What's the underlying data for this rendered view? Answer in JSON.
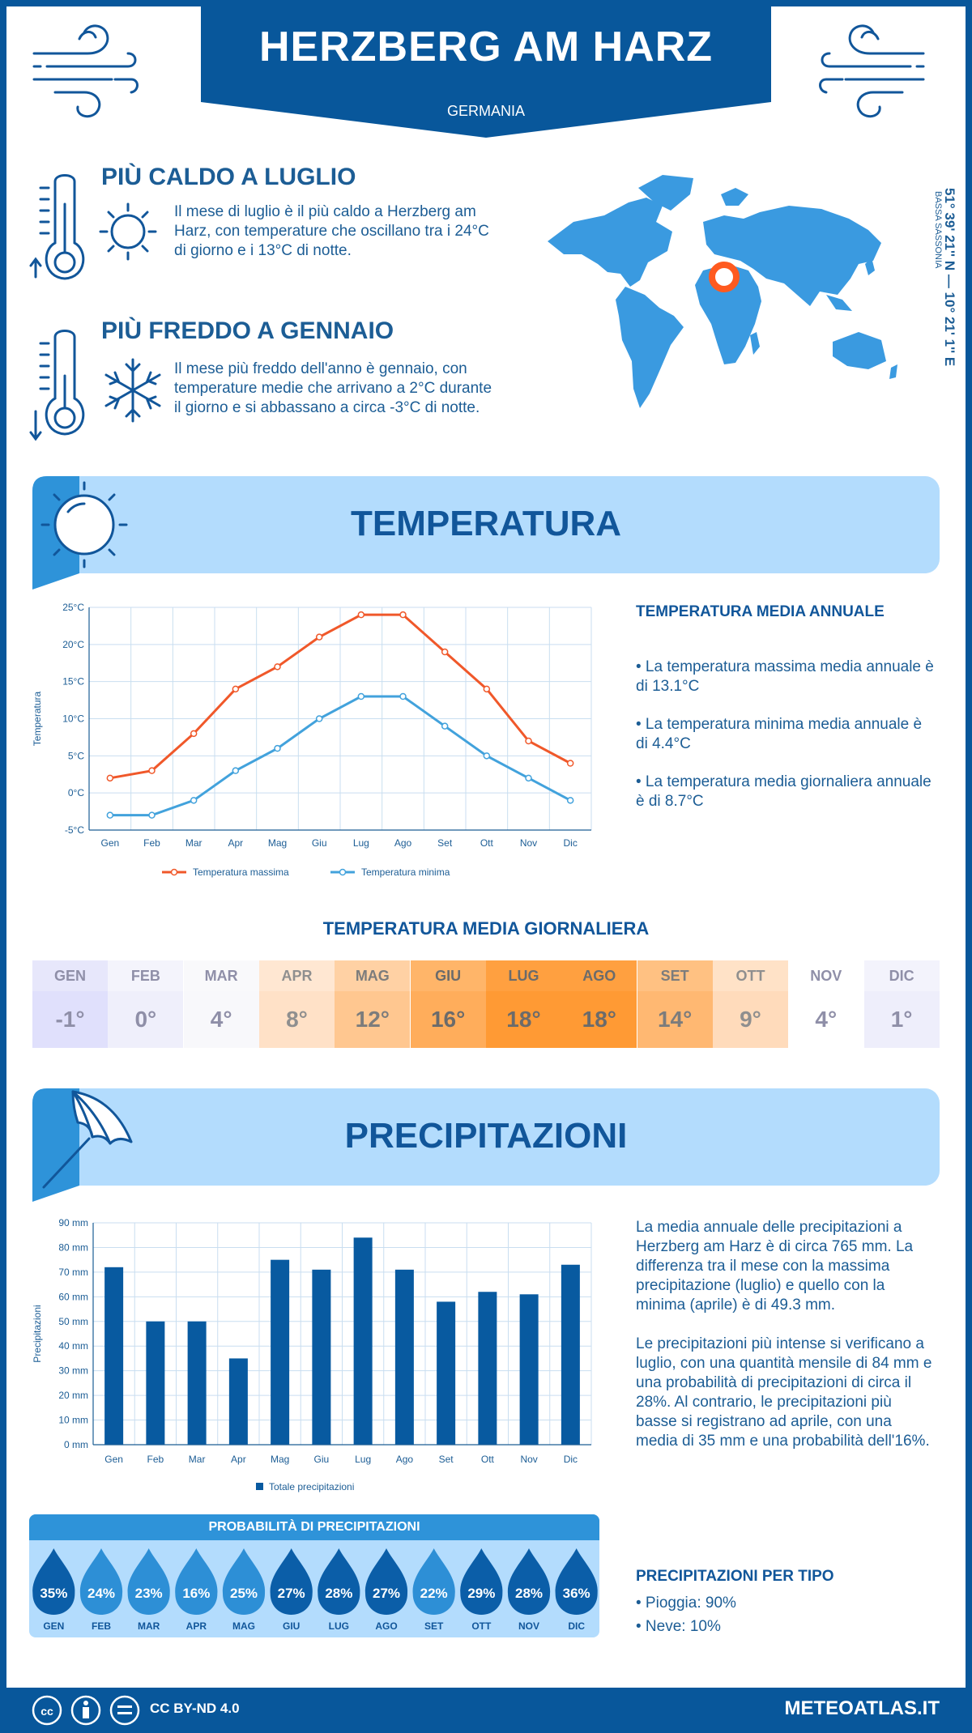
{
  "header": {
    "title": "HERZBERG AM HARZ",
    "country": "GERMANIA"
  },
  "coords": {
    "text": "51° 39' 21'' N — 10° 21' 1'' E",
    "region": "BASSA SASSONIA"
  },
  "hottest": {
    "title": "PIÙ CALDO A LUGLIO",
    "text": "Il mese di luglio è il più caldo a Herzberg am Harz, con temperature che oscillano tra i 24°C di giorno e i 13°C di notte."
  },
  "coldest": {
    "title": "PIÙ FREDDO A GENNAIO",
    "text": "Il mese più freddo dell'anno è gennaio, con temperature medie che arrivano a 2°C durante il giorno e si abbassano a circa -3°C di notte."
  },
  "temperature": {
    "section_title": "TEMPERATURA",
    "side_title": "TEMPERATURA MEDIA ANNUALE",
    "bullets": [
      "• La temperatura massima media annuale è di 13.1°C",
      "• La temperatura minima media annuale è di 4.4°C",
      "• La temperatura media giornaliera annuale è di 8.7°C"
    ],
    "daily_title": "TEMPERATURA MEDIA GIORNALIERA"
  },
  "daily": [
    {
      "month": "GEN",
      "value": "-1°",
      "bg": "#e0e0fc",
      "bg2": "#e7e7fb",
      "color": "#8f8fa8"
    },
    {
      "month": "FEB",
      "value": "0°",
      "bg": "#efeffb",
      "bg2": "#f4f4fc",
      "color": "#8f8fa8"
    },
    {
      "month": "MAR",
      "value": "4°",
      "bg": "#f8f8fb",
      "bg2": "#f9f9fb",
      "color": "#8f8fa8"
    },
    {
      "month": "APR",
      "value": "8°",
      "bg": "#ffe1c7",
      "bg2": "#ffe7d2",
      "color": "#8f8f8f"
    },
    {
      "month": "MAG",
      "value": "12°",
      "bg": "#ffc790",
      "bg2": "#ffd1a4",
      "color": "#7c7c7c"
    },
    {
      "month": "GIU",
      "value": "16°",
      "bg": "#ffad5b",
      "bg2": "#ffb569",
      "color": "#6b6b6b"
    },
    {
      "month": "LUG",
      "value": "18°",
      "bg": "#ff9a34",
      "bg2": "#ffa040",
      "color": "#6b6b6b"
    },
    {
      "month": "AGO",
      "value": "18°",
      "bg": "#ff9a34",
      "bg2": "#ffa040",
      "color": "#6b6b6b"
    },
    {
      "month": "SET",
      "value": "14°",
      "bg": "#ffb872",
      "bg2": "#ffc182",
      "color": "#7c7c7c"
    },
    {
      "month": "OTT",
      "value": "9°",
      "bg": "#ffdbbb",
      "bg2": "#ffe2c7",
      "color": "#8f8f8f"
    },
    {
      "month": "NOV",
      "value": "4°",
      "bg": "#ffffff",
      "bg2": "#ffffff",
      "color": "#8f8fa8"
    },
    {
      "month": "DIC",
      "value": "1°",
      "bg": "#eeeefb",
      "bg2": "#f3f3fc",
      "color": "#8f8fa8"
    }
  ],
  "precip": {
    "section_title": "PRECIPITAZIONI",
    "para1": "La media annuale delle precipitazioni a Herzberg am Harz è di circa 765 mm. La differenza tra il mese con la massima precipitazione (luglio) e quello con la minima (aprile) è di 49.3 mm.",
    "para2": "Le precipitazioni più intense si verificano a luglio, con una quantità mensile di 84 mm e una probabilità di precipitazioni di circa il 28%. Al contrario, le precipitazioni più basse si registrano ad aprile, con una media di 35 mm e una probabilità dell'16%.",
    "prob_title": "PROBABILITÀ DI PRECIPITAZIONI",
    "types_title": "PRECIPITAZIONI PER TIPO",
    "types": [
      "• Pioggia: 90%",
      "• Neve: 10%"
    ]
  },
  "probability": [
    {
      "month": "GEN",
      "value": "35%",
      "color": "#0b5ea8"
    },
    {
      "month": "FEB",
      "value": "24%",
      "color": "#2d8fd6"
    },
    {
      "month": "MAR",
      "value": "23%",
      "color": "#2d8fd6"
    },
    {
      "month": "APR",
      "value": "16%",
      "color": "#2d8fd6"
    },
    {
      "month": "MAG",
      "value": "25%",
      "color": "#2d8fd6"
    },
    {
      "month": "GIU",
      "value": "27%",
      "color": "#0b5ea8"
    },
    {
      "month": "LUG",
      "value": "28%",
      "color": "#0b5ea8"
    },
    {
      "month": "AGO",
      "value": "27%",
      "color": "#0b5ea8"
    },
    {
      "month": "SET",
      "value": "22%",
      "color": "#2d8fd6"
    },
    {
      "month": "OTT",
      "value": "29%",
      "color": "#0b5ea8"
    },
    {
      "month": "NOV",
      "value": "28%",
      "color": "#0b5ea8"
    },
    {
      "month": "DIC",
      "value": "36%",
      "color": "#0b5ea8"
    }
  ],
  "footer": {
    "license": "CC BY-ND 4.0",
    "site": "METEOATLAS.IT"
  },
  "colors": {
    "brand": "#08579b",
    "max_line": "#f0582a",
    "min_line": "#42a2dc",
    "bar": "#085aa0"
  },
  "chart_data": [
    {
      "type": "line",
      "categories": [
        "Gen",
        "Feb",
        "Mar",
        "Apr",
        "Mag",
        "Giu",
        "Lug",
        "Ago",
        "Set",
        "Ott",
        "Nov",
        "Dic"
      ],
      "series": [
        {
          "name": "Temperatura massima",
          "values": [
            2,
            3,
            8,
            14,
            17,
            21,
            24,
            24,
            19,
            14,
            7,
            4
          ]
        },
        {
          "name": "Temperatura minima",
          "values": [
            -3,
            -3,
            -1,
            3,
            6,
            10,
            13,
            13,
            9,
            5,
            2,
            -1
          ]
        }
      ],
      "ylabel": "Temperatura",
      "yticks": [
        "-5°C",
        "0°C",
        "5°C",
        "10°C",
        "15°C",
        "20°C",
        "25°C"
      ],
      "ylim": [
        -5,
        25
      ],
      "grid": true,
      "legend": "bottom"
    },
    {
      "type": "bar",
      "categories": [
        "Gen",
        "Feb",
        "Mar",
        "Apr",
        "Mag",
        "Giu",
        "Lug",
        "Ago",
        "Set",
        "Ott",
        "Nov",
        "Dic"
      ],
      "series": [
        {
          "name": "Totale precipitazioni",
          "values": [
            72,
            50,
            50,
            35,
            75,
            71,
            84,
            71,
            58,
            62,
            61,
            73
          ]
        }
      ],
      "ylabel": "Precipitazioni",
      "yticks": [
        "0 mm",
        "10 mm",
        "20 mm",
        "30 mm",
        "40 mm",
        "50 mm",
        "60 mm",
        "70 mm",
        "80 mm",
        "90 mm"
      ],
      "ylim": [
        0,
        90
      ],
      "grid": true,
      "legend": "bottom"
    }
  ]
}
